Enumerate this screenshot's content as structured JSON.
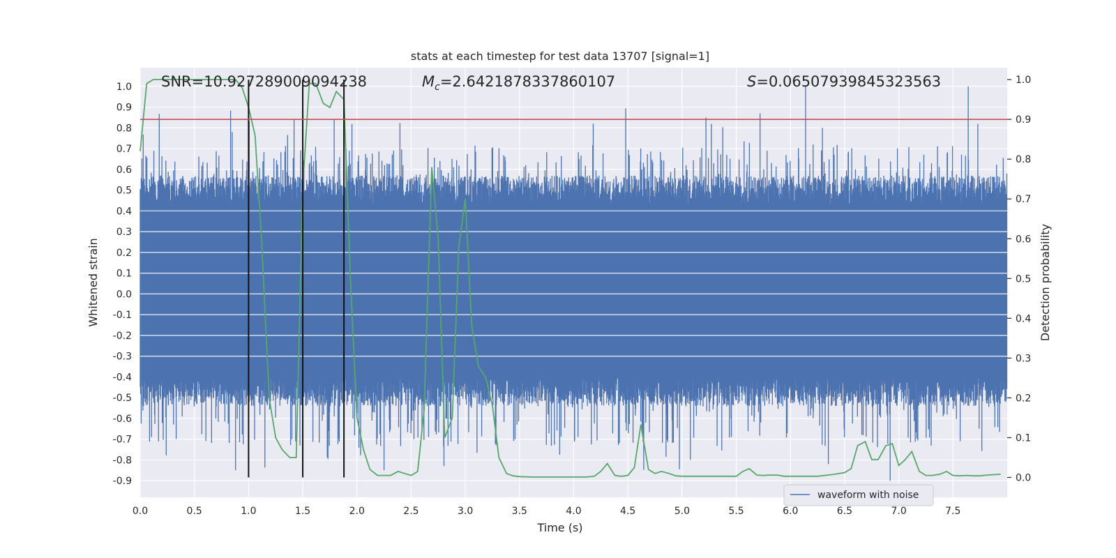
{
  "chart_data": {
    "type": "line",
    "title": "stats at each timestep for test data 13707 [signal=1]",
    "xlabel": "Time (s)",
    "ylabel_left": "Whitened strain",
    "ylabel_right": "Detection probability",
    "xlim": [
      0,
      8.0
    ],
    "ylim_left": [
      -0.98,
      1.09
    ],
    "ylim_right": [
      -0.05,
      1.03
    ],
    "x_ticks": [
      0.0,
      0.5,
      1.0,
      1.5,
      2.0,
      2.5,
      3.0,
      3.5,
      4.0,
      4.5,
      5.0,
      5.5,
      6.0,
      6.5,
      7.0,
      7.5
    ],
    "x_tick_labels": [
      "0.0",
      "0.5",
      "1.0",
      "1.5",
      "2.0",
      "2.5",
      "3.0",
      "3.5",
      "4.0",
      "4.5",
      "5.0",
      "5.5",
      "6.0",
      "6.5",
      "7.0",
      "7.5"
    ],
    "y_left_ticks": [
      1.0,
      0.9,
      0.8,
      0.7,
      0.6,
      0.5,
      0.4,
      0.3,
      0.2,
      0.1,
      0.0,
      -0.1,
      -0.2,
      -0.3,
      -0.4,
      -0.5,
      -0.6,
      -0.7,
      -0.8,
      -0.9
    ],
    "y_left_tick_labels": [
      "1.0",
      "0.9",
      "0.8",
      "0.7",
      "0.6",
      "0.5",
      "0.4",
      "0.3",
      "0.2",
      "0.1",
      "0.0",
      "-0.1",
      "-0.2",
      "-0.3",
      "-0.4",
      "-0.5",
      "-0.6",
      "-0.7",
      "-0.8",
      "-0.9"
    ],
    "y_right_ticks": [
      1.0,
      0.9,
      0.8,
      0.7,
      0.6,
      0.5,
      0.4,
      0.3,
      0.2,
      0.1,
      0.0
    ],
    "y_right_tick_labels": [
      "1.0",
      "0.9",
      "0.8",
      "0.7",
      "0.6",
      "0.5",
      "0.4",
      "0.3",
      "0.2",
      "0.1",
      "0.0"
    ],
    "annotations": {
      "snr_prefix": "SNR=",
      "snr_value": "10.927289009094238",
      "mc_symbol": "M",
      "mc_subscript": "c",
      "mc_value": "=2.6421878337860107",
      "s_symbol": "S",
      "s_value": "=0.06507939845323563"
    },
    "threshold": {
      "axis": "right",
      "value": 0.9,
      "color": "#c44e52"
    },
    "event_markers": [
      1.0,
      1.5,
      1.88
    ],
    "series": [
      {
        "name": "waveform with noise",
        "axis": "left",
        "color": "#4c72b0",
        "kind": "noise-band",
        "core_range": [
          -0.4,
          0.43
        ],
        "typical_peak_range": [
          -0.62,
          0.6
        ],
        "max_peak": 1.0,
        "min_peak": -0.9
      },
      {
        "name": "detection probability",
        "axis": "right",
        "color": "#55a868",
        "x": [
          0.0,
          0.06,
          0.12,
          0.25,
          0.5,
          0.75,
          0.88,
          0.94,
          1.0,
          1.06,
          1.12,
          1.19,
          1.25,
          1.31,
          1.38,
          1.44,
          1.5,
          1.56,
          1.62,
          1.69,
          1.75,
          1.81,
          1.88,
          1.94,
          2.0,
          2.06,
          2.12,
          2.19,
          2.25,
          2.31,
          2.38,
          2.44,
          2.5,
          2.56,
          2.62,
          2.69,
          2.75,
          2.81,
          2.88,
          2.94,
          3.0,
          3.06,
          3.12,
          3.19,
          3.25,
          3.31,
          3.38,
          3.44,
          3.5,
          3.62,
          3.75,
          4.0,
          4.12,
          4.19,
          4.25,
          4.31,
          4.38,
          4.44,
          4.5,
          4.56,
          4.62,
          4.69,
          4.75,
          4.81,
          4.88,
          4.94,
          5.0,
          5.25,
          5.5,
          5.56,
          5.62,
          5.69,
          5.75,
          5.81,
          5.88,
          5.94,
          6.0,
          6.25,
          6.38,
          6.5,
          6.56,
          6.62,
          6.69,
          6.75,
          6.81,
          6.88,
          6.94,
          7.0,
          7.06,
          7.12,
          7.19,
          7.25,
          7.31,
          7.38,
          7.44,
          7.5,
          7.56,
          7.62,
          7.69,
          7.75,
          7.81,
          7.88,
          7.94
        ],
        "values": [
          0.82,
          0.99,
          1.0,
          1.0,
          1.0,
          1.0,
          1.0,
          0.98,
          0.93,
          0.86,
          0.6,
          0.2,
          0.1,
          0.07,
          0.05,
          0.05,
          0.73,
          0.99,
          0.99,
          0.94,
          0.93,
          0.97,
          0.95,
          0.5,
          0.15,
          0.07,
          0.02,
          0.005,
          0.005,
          0.005,
          0.015,
          0.01,
          0.005,
          0.015,
          0.17,
          0.78,
          0.6,
          0.1,
          0.15,
          0.58,
          0.7,
          0.38,
          0.28,
          0.25,
          0.18,
          0.05,
          0.01,
          0.004,
          0.002,
          0.001,
          0.001,
          0.001,
          0.001,
          0.003,
          0.015,
          0.035,
          0.005,
          0.003,
          0.005,
          0.025,
          0.133,
          0.02,
          0.01,
          0.015,
          0.01,
          0.004,
          0.003,
          0.003,
          0.003,
          0.015,
          0.022,
          0.006,
          0.005,
          0.006,
          0.006,
          0.003,
          0.003,
          0.003,
          0.007,
          0.012,
          0.022,
          0.08,
          0.09,
          0.045,
          0.045,
          0.08,
          0.085,
          0.03,
          0.045,
          0.065,
          0.015,
          0.005,
          0.005,
          0.008,
          0.015,
          0.005,
          0.004,
          0.005,
          0.004,
          0.004,
          0.006,
          0.007,
          0.008
        ]
      }
    ],
    "legend": {
      "placement": "bottom-right",
      "label": "waveform with noise"
    }
  }
}
